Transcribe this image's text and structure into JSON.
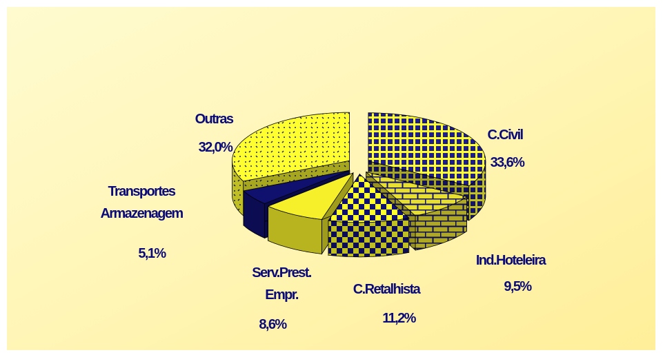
{
  "chart_data": {
    "type": "pie3d",
    "categories": [
      "C.Civil",
      "Ind.Hoteleira",
      "C.Retalhista",
      "Serv.Prest. Empr.",
      "Transportes Armazenagem",
      "Outras"
    ],
    "values": [
      33.6,
      9.5,
      11.2,
      8.6,
      5.1,
      32.0
    ],
    "value_labels": [
      "33,6%",
      "9,5%",
      "11,2%",
      "8,6%",
      "5,1%",
      "32,0%"
    ]
  }
}
